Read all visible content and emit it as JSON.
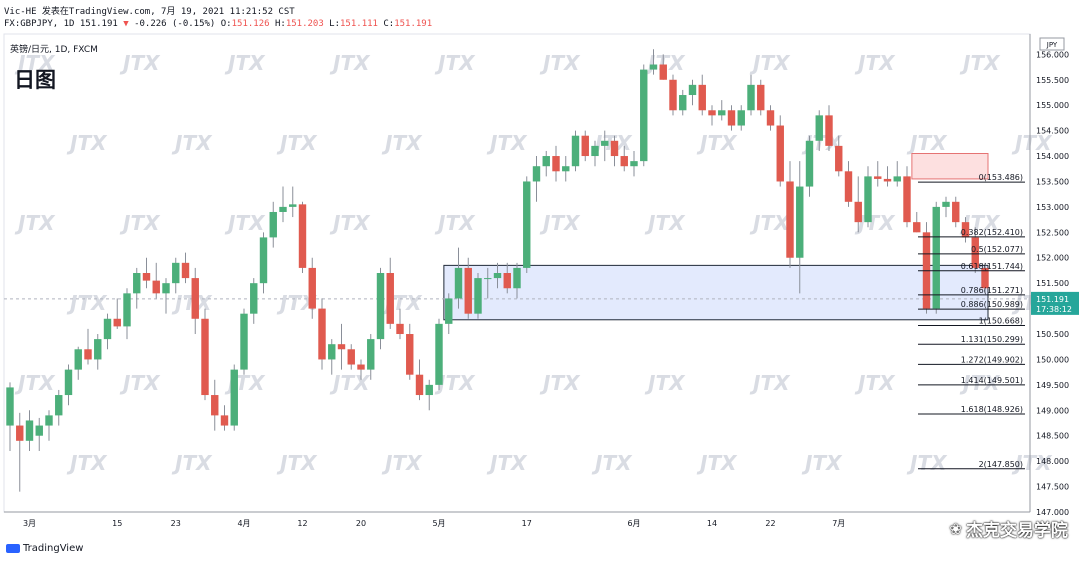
{
  "header": {
    "line1_prefix": "Vic-HE 发表在TradingView.com, 7月 19, 2021 11:21:52 CST",
    "line2_symbol": "FX:GBPJPY, 1D 151.191",
    "line2_change": "-0.226 (-0.15%)",
    "o_label": "O:",
    "o_value": "151.126",
    "h_label": "H:",
    "h_value": "151.203",
    "l_label": "L:",
    "l_value": "151.111",
    "c_label": "C:",
    "c_value": "151.191"
  },
  "symbol_line": "英镑/日元, 1D, FXCM",
  "timeframe_title": "日图",
  "currency_badge": "JPY",
  "footer": {
    "brand": "TradingView",
    "watermark": "杰克交易学院",
    "watermark_icon": "❀"
  },
  "chart_data": {
    "type": "candlestick",
    "title": "英镑/日元, 1D, FXCM",
    "ylim": [
      147.0,
      156.4
    ],
    "y_ticks": [
      "156.000",
      "155.500",
      "155.000",
      "154.500",
      "154.000",
      "153.500",
      "153.000",
      "152.500",
      "152.000",
      "151.500",
      "151.000",
      "150.500",
      "150.000",
      "149.500",
      "149.000",
      "148.500",
      "148.000",
      "147.500",
      "147.000"
    ],
    "x_ticks": [
      {
        "label": "3月",
        "index": 2
      },
      {
        "label": "15",
        "index": 11
      },
      {
        "label": "23",
        "index": 17
      },
      {
        "label": "4月",
        "index": 24
      },
      {
        "label": "12",
        "index": 30
      },
      {
        "label": "20",
        "index": 36
      },
      {
        "label": "5月",
        "index": 44
      },
      {
        "label": "17",
        "index": 53
      },
      {
        "label": "6月",
        "index": 64
      },
      {
        "label": "14",
        "index": 72
      },
      {
        "label": "22",
        "index": 78
      },
      {
        "label": "7月",
        "index": 85
      }
    ],
    "last_price": "151.191",
    "countdown": "17:38:12",
    "candles": [
      {
        "o": 148.7,
        "h": 149.55,
        "l": 148.2,
        "c": 149.45
      },
      {
        "o": 148.7,
        "h": 148.95,
        "l": 147.4,
        "c": 148.4
      },
      {
        "o": 148.4,
        "h": 149.0,
        "l": 148.2,
        "c": 148.8
      },
      {
        "o": 148.5,
        "h": 148.85,
        "l": 148.2,
        "c": 148.7
      },
      {
        "o": 148.7,
        "h": 149.0,
        "l": 148.4,
        "c": 148.9
      },
      {
        "o": 148.9,
        "h": 149.4,
        "l": 148.7,
        "c": 149.3
      },
      {
        "o": 149.3,
        "h": 149.9,
        "l": 149.1,
        "c": 149.8
      },
      {
        "o": 149.8,
        "h": 150.25,
        "l": 149.6,
        "c": 150.2
      },
      {
        "o": 150.2,
        "h": 150.6,
        "l": 149.9,
        "c": 150.0
      },
      {
        "o": 150.0,
        "h": 150.5,
        "l": 149.8,
        "c": 150.4
      },
      {
        "o": 150.4,
        "h": 150.9,
        "l": 150.2,
        "c": 150.8
      },
      {
        "o": 150.8,
        "h": 151.2,
        "l": 150.6,
        "c": 150.65
      },
      {
        "o": 150.65,
        "h": 151.4,
        "l": 150.4,
        "c": 151.3
      },
      {
        "o": 151.3,
        "h": 151.8,
        "l": 151.0,
        "c": 151.7
      },
      {
        "o": 151.7,
        "h": 152.0,
        "l": 151.4,
        "c": 151.55
      },
      {
        "o": 151.55,
        "h": 151.9,
        "l": 151.2,
        "c": 151.3
      },
      {
        "o": 151.3,
        "h": 151.6,
        "l": 150.9,
        "c": 151.5
      },
      {
        "o": 151.5,
        "h": 152.0,
        "l": 151.3,
        "c": 151.9
      },
      {
        "o": 151.9,
        "h": 152.1,
        "l": 151.5,
        "c": 151.6
      },
      {
        "o": 151.6,
        "h": 151.8,
        "l": 150.5,
        "c": 150.8
      },
      {
        "o": 150.8,
        "h": 151.0,
        "l": 149.2,
        "c": 149.3
      },
      {
        "o": 149.3,
        "h": 149.6,
        "l": 148.6,
        "c": 148.9
      },
      {
        "o": 148.9,
        "h": 149.1,
        "l": 148.6,
        "c": 148.7
      },
      {
        "o": 148.7,
        "h": 149.9,
        "l": 148.6,
        "c": 149.8
      },
      {
        "o": 149.8,
        "h": 151.0,
        "l": 149.7,
        "c": 150.9
      },
      {
        "o": 150.9,
        "h": 151.6,
        "l": 150.7,
        "c": 151.5
      },
      {
        "o": 151.5,
        "h": 152.5,
        "l": 151.3,
        "c": 152.4
      },
      {
        "o": 152.4,
        "h": 153.1,
        "l": 152.2,
        "c": 152.9
      },
      {
        "o": 152.9,
        "h": 153.4,
        "l": 152.7,
        "c": 153.0
      },
      {
        "o": 153.0,
        "h": 153.4,
        "l": 152.8,
        "c": 153.05
      },
      {
        "o": 153.05,
        "h": 153.1,
        "l": 151.7,
        "c": 151.8
      },
      {
        "o": 151.8,
        "h": 152.0,
        "l": 150.8,
        "c": 151.0
      },
      {
        "o": 151.0,
        "h": 151.2,
        "l": 149.8,
        "c": 150.0
      },
      {
        "o": 150.0,
        "h": 150.4,
        "l": 149.7,
        "c": 150.3
      },
      {
        "o": 150.3,
        "h": 150.7,
        "l": 149.8,
        "c": 150.2
      },
      {
        "o": 150.2,
        "h": 150.3,
        "l": 149.8,
        "c": 149.9
      },
      {
        "o": 149.9,
        "h": 150.0,
        "l": 149.6,
        "c": 149.8
      },
      {
        "o": 149.8,
        "h": 150.5,
        "l": 149.6,
        "c": 150.4
      },
      {
        "o": 150.4,
        "h": 151.8,
        "l": 150.2,
        "c": 151.7
      },
      {
        "o": 151.7,
        "h": 152.0,
        "l": 150.6,
        "c": 150.7
      },
      {
        "o": 150.7,
        "h": 151.0,
        "l": 150.4,
        "c": 150.5
      },
      {
        "o": 150.5,
        "h": 150.7,
        "l": 149.6,
        "c": 149.7
      },
      {
        "o": 149.7,
        "h": 150.0,
        "l": 149.2,
        "c": 149.3
      },
      {
        "o": 149.3,
        "h": 149.6,
        "l": 149.0,
        "c": 149.5
      },
      {
        "o": 149.5,
        "h": 150.8,
        "l": 149.4,
        "c": 150.7
      },
      {
        "o": 150.7,
        "h": 151.3,
        "l": 150.5,
        "c": 151.2
      },
      {
        "o": 151.2,
        "h": 152.2,
        "l": 151.0,
        "c": 151.8
      },
      {
        "o": 151.8,
        "h": 152.0,
        "l": 150.8,
        "c": 150.9
      },
      {
        "o": 150.9,
        "h": 151.7,
        "l": 150.8,
        "c": 151.6
      },
      {
        "o": 151.6,
        "h": 151.8,
        "l": 151.2,
        "c": 151.6
      },
      {
        "o": 151.6,
        "h": 151.9,
        "l": 151.4,
        "c": 151.7
      },
      {
        "o": 151.7,
        "h": 151.9,
        "l": 151.3,
        "c": 151.4
      },
      {
        "o": 151.4,
        "h": 151.9,
        "l": 151.2,
        "c": 151.8
      },
      {
        "o": 151.8,
        "h": 153.6,
        "l": 151.7,
        "c": 153.5
      },
      {
        "o": 153.5,
        "h": 154.0,
        "l": 153.1,
        "c": 153.8
      },
      {
        "o": 153.8,
        "h": 154.1,
        "l": 153.6,
        "c": 154.0
      },
      {
        "o": 154.0,
        "h": 154.2,
        "l": 153.5,
        "c": 153.7
      },
      {
        "o": 153.7,
        "h": 154.0,
        "l": 153.5,
        "c": 153.8
      },
      {
        "o": 153.8,
        "h": 154.5,
        "l": 153.7,
        "c": 154.4
      },
      {
        "o": 154.4,
        "h": 154.5,
        "l": 153.9,
        "c": 154.0
      },
      {
        "o": 154.0,
        "h": 154.3,
        "l": 153.8,
        "c": 154.2
      },
      {
        "o": 154.2,
        "h": 154.5,
        "l": 153.9,
        "c": 154.3
      },
      {
        "o": 154.3,
        "h": 154.4,
        "l": 153.8,
        "c": 154.0
      },
      {
        "o": 154.0,
        "h": 154.2,
        "l": 153.7,
        "c": 153.8
      },
      {
        "o": 153.8,
        "h": 154.1,
        "l": 153.6,
        "c": 153.9
      },
      {
        "o": 153.9,
        "h": 155.8,
        "l": 153.8,
        "c": 155.7
      },
      {
        "o": 155.7,
        "h": 156.1,
        "l": 155.6,
        "c": 155.8
      },
      {
        "o": 155.8,
        "h": 156.0,
        "l": 155.5,
        "c": 155.5
      },
      {
        "o": 155.5,
        "h": 155.6,
        "l": 154.8,
        "c": 154.9
      },
      {
        "o": 154.9,
        "h": 155.3,
        "l": 154.8,
        "c": 155.2
      },
      {
        "o": 155.2,
        "h": 155.5,
        "l": 155.0,
        "c": 155.4
      },
      {
        "o": 155.4,
        "h": 155.6,
        "l": 154.8,
        "c": 154.9
      },
      {
        "o": 154.9,
        "h": 155.0,
        "l": 154.6,
        "c": 154.8
      },
      {
        "o": 154.8,
        "h": 155.1,
        "l": 154.7,
        "c": 154.9
      },
      {
        "o": 154.9,
        "h": 155.0,
        "l": 154.5,
        "c": 154.6
      },
      {
        "o": 154.6,
        "h": 155.0,
        "l": 154.5,
        "c": 154.9
      },
      {
        "o": 154.9,
        "h": 155.6,
        "l": 154.8,
        "c": 155.4
      },
      {
        "o": 155.4,
        "h": 155.5,
        "l": 154.8,
        "c": 154.9
      },
      {
        "o": 154.9,
        "h": 155.0,
        "l": 154.5,
        "c": 154.6
      },
      {
        "o": 154.6,
        "h": 154.8,
        "l": 153.4,
        "c": 153.5
      },
      {
        "o": 153.5,
        "h": 153.9,
        "l": 151.8,
        "c": 152.0
      },
      {
        "o": 152.0,
        "h": 153.9,
        "l": 151.3,
        "c": 153.4
      },
      {
        "o": 153.4,
        "h": 154.4,
        "l": 153.2,
        "c": 154.3
      },
      {
        "o": 154.3,
        "h": 154.9,
        "l": 154.1,
        "c": 154.8
      },
      {
        "o": 154.8,
        "h": 155.0,
        "l": 154.1,
        "c": 154.2
      },
      {
        "o": 154.2,
        "h": 154.4,
        "l": 153.6,
        "c": 153.7
      },
      {
        "o": 153.7,
        "h": 153.9,
        "l": 153.0,
        "c": 153.1
      },
      {
        "o": 153.1,
        "h": 153.6,
        "l": 152.5,
        "c": 152.7
      },
      {
        "o": 152.7,
        "h": 153.8,
        "l": 152.6,
        "c": 153.6
      },
      {
        "o": 153.6,
        "h": 153.9,
        "l": 153.4,
        "c": 153.55
      },
      {
        "o": 153.55,
        "h": 153.8,
        "l": 153.4,
        "c": 153.5
      },
      {
        "o": 153.5,
        "h": 153.9,
        "l": 153.4,
        "c": 153.6
      },
      {
        "o": 153.6,
        "h": 153.8,
        "l": 152.6,
        "c": 152.7
      },
      {
        "o": 152.7,
        "h": 152.9,
        "l": 152.5,
        "c": 152.5
      },
      {
        "o": 152.5,
        "h": 152.7,
        "l": 150.9,
        "c": 151.0
      },
      {
        "o": 151.0,
        "h": 153.1,
        "l": 150.9,
        "c": 153.0
      },
      {
        "o": 153.0,
        "h": 153.2,
        "l": 152.8,
        "c": 153.1
      },
      {
        "o": 153.1,
        "h": 153.2,
        "l": 152.6,
        "c": 152.7
      },
      {
        "o": 152.7,
        "h": 152.8,
        "l": 152.3,
        "c": 152.4
      },
      {
        "o": 152.4,
        "h": 152.6,
        "l": 151.7,
        "c": 151.8
      },
      {
        "o": 151.8,
        "h": 151.9,
        "l": 151.3,
        "c": 151.4
      }
    ],
    "zones": [
      {
        "name": "supply-zone",
        "y1": 153.55,
        "y2": 154.05,
        "i1": 93,
        "i2": 104,
        "fill": "#fde0e0",
        "stroke": "#e57373"
      },
      {
        "name": "demand-zone",
        "y1": 150.78,
        "y2": 151.85,
        "i1": 45,
        "i2": 104,
        "fill": "#e3eafd",
        "stroke": "#1f2937"
      }
    ],
    "fib_levels": [
      {
        "label": "0(153.486)",
        "value": 153.486
      },
      {
        "label": "0.382(152.410)",
        "value": 152.41
      },
      {
        "label": "0.5(152.077)",
        "value": 152.077
      },
      {
        "label": "0.618(151.744)",
        "value": 151.744
      },
      {
        "label": "0.786(151.271)",
        "value": 151.271
      },
      {
        "label": "0.886(150.989)",
        "value": 150.989
      },
      {
        "label": "1(150.668)",
        "value": 150.668
      },
      {
        "label": "1.131(150.299)",
        "value": 150.299
      },
      {
        "label": "1.272(149.902)",
        "value": 149.902
      },
      {
        "label": "1.414(149.501)",
        "value": 149.501
      },
      {
        "label": "1.618(148.926)",
        "value": 148.926
      },
      {
        "label": "2(147.850)",
        "value": 147.85
      }
    ],
    "watermark": "JTX",
    "colors": {
      "up": "#26a69a",
      "down": "#ef5350",
      "up_body": "#4caf7a",
      "down_body": "#e05a4f",
      "price_tag": "#26a69a"
    }
  }
}
